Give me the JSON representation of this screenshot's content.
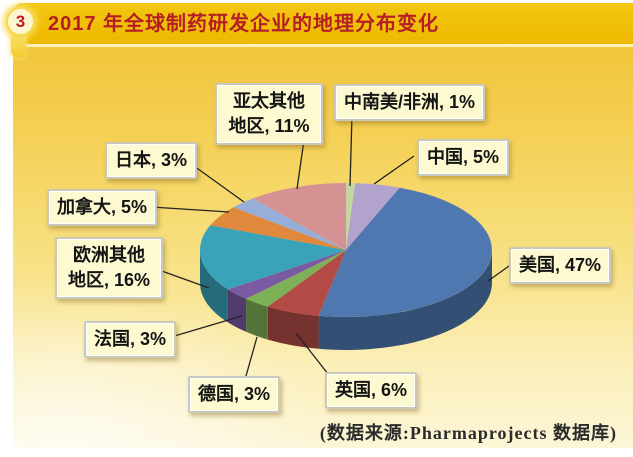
{
  "header": {
    "badge": "3",
    "title": "2017 年全球制药研发企业的地理分布变化"
  },
  "footer": {
    "source_note": "(数据来源:Pharmaprojects 数据库)"
  },
  "theme": {
    "header_band_color": "#EFBD04",
    "title_color": "#B41E24",
    "panel_gradient_top": "#EFBD2C",
    "panel_gradient_bottom": "#FCF6D8",
    "label_box_bg": "#FDFAD1",
    "label_box_border": "#C9C9BB",
    "leader_line_color": "#222222"
  },
  "chart_data": {
    "type": "pie",
    "effect": "3d",
    "title": "2017 年全球制药研发企业的地理分布变化",
    "unit": "%",
    "start_angle_deg": 0,
    "direction": "clockwise",
    "legend_position": "none",
    "slices": [
      {
        "name": "中南美/非洲",
        "value": 1,
        "color": "#C6D6A2"
      },
      {
        "name": "中国",
        "value": 5,
        "color": "#B1A3CC"
      },
      {
        "name": "美国",
        "value": 47,
        "color": "#4F78B0"
      },
      {
        "name": "英国",
        "value": 6,
        "color": "#B24B45"
      },
      {
        "name": "德国",
        "value": 3,
        "color": "#7EB057"
      },
      {
        "name": "法国",
        "value": 3,
        "color": "#7A5AA3"
      },
      {
        "name": "欧洲其他地区",
        "value": 16,
        "color": "#3AA2B9"
      },
      {
        "name": "加拿大",
        "value": 5,
        "color": "#E0893D"
      },
      {
        "name": "日本",
        "value": 3,
        "color": "#97AED8"
      },
      {
        "name": "亚太其他地区",
        "value": 11,
        "color": "#D69292"
      }
    ],
    "labels": [
      "中南美/非洲, 1%",
      "中国, 5%",
      "美国, 47%",
      "英国, 6%",
      "德国, 3%",
      "法国, 3%",
      "欧洲其他地区, 16%",
      "加拿大, 5%",
      "日本, 3%",
      "亚太其他地区, 11%"
    ]
  }
}
